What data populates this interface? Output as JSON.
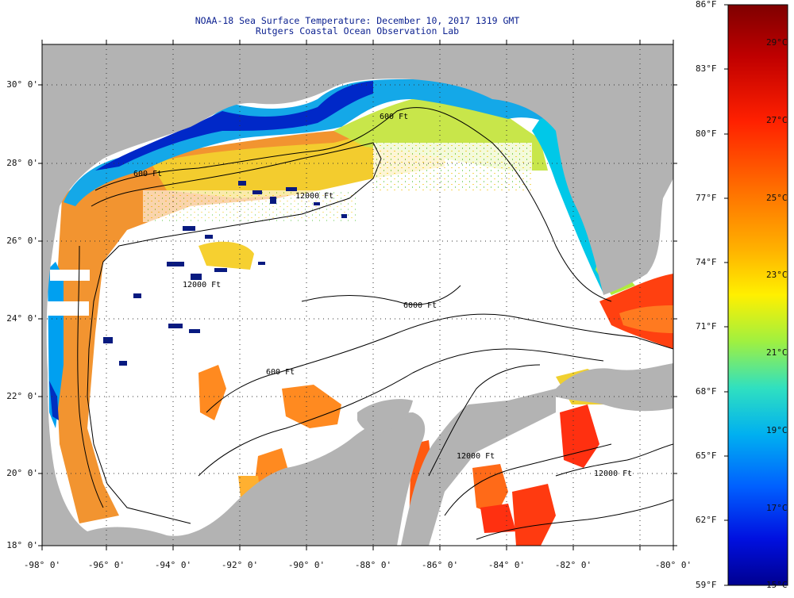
{
  "header": {
    "line1": "NOAA-18 Sea Surface Temperature:  December 10, 2017 1319 GMT",
    "line2": "Rutgers Coastal Ocean Observation Lab"
  },
  "axes": {
    "lat_labels": [
      "30° 0'",
      "28° 0'",
      "26° 0'",
      "24° 0'",
      "22° 0'",
      "20° 0'",
      "18° 0'"
    ],
    "lon_labels": [
      "-98° 0'",
      "-96° 0'",
      "-94° 0'",
      "-92° 0'",
      "-90° 0'",
      "-88° 0'",
      "-86° 0'",
      "-84° 0'",
      "-82° 0'",
      "-80° 0'"
    ]
  },
  "isobaths": {
    "l600a": "600 Ft",
    "l600b": "600 Ft",
    "l600c": "600 Ft",
    "l12000a": "12000 Ft",
    "l12000b": "12000 Ft",
    "l12000c": "12000 Ft",
    "l12000d": "12000 Ft",
    "l6000": "6000 Ft"
  },
  "colorbar": {
    "f_labels": [
      "86°F",
      "83°F",
      "80°F",
      "77°F",
      "74°F",
      "71°F",
      "68°F",
      "65°F",
      "62°F",
      "59°F"
    ],
    "c_labels": [
      "29°C",
      "27°C",
      "25°C",
      "23°C",
      "21°C",
      "19°C",
      "17°C",
      "15°C"
    ],
    "colors": [
      "#7f0000",
      "#c00000",
      "#ff2000",
      "#ff7000",
      "#ffb000",
      "#fff000",
      "#a0f040",
      "#30e0c0",
      "#00b0f0",
      "#0060ff",
      "#0010e0",
      "#000090"
    ]
  },
  "colors": {
    "land": "#b3b3b3",
    "cloud": "#ffffff",
    "grid": "#333333"
  }
}
